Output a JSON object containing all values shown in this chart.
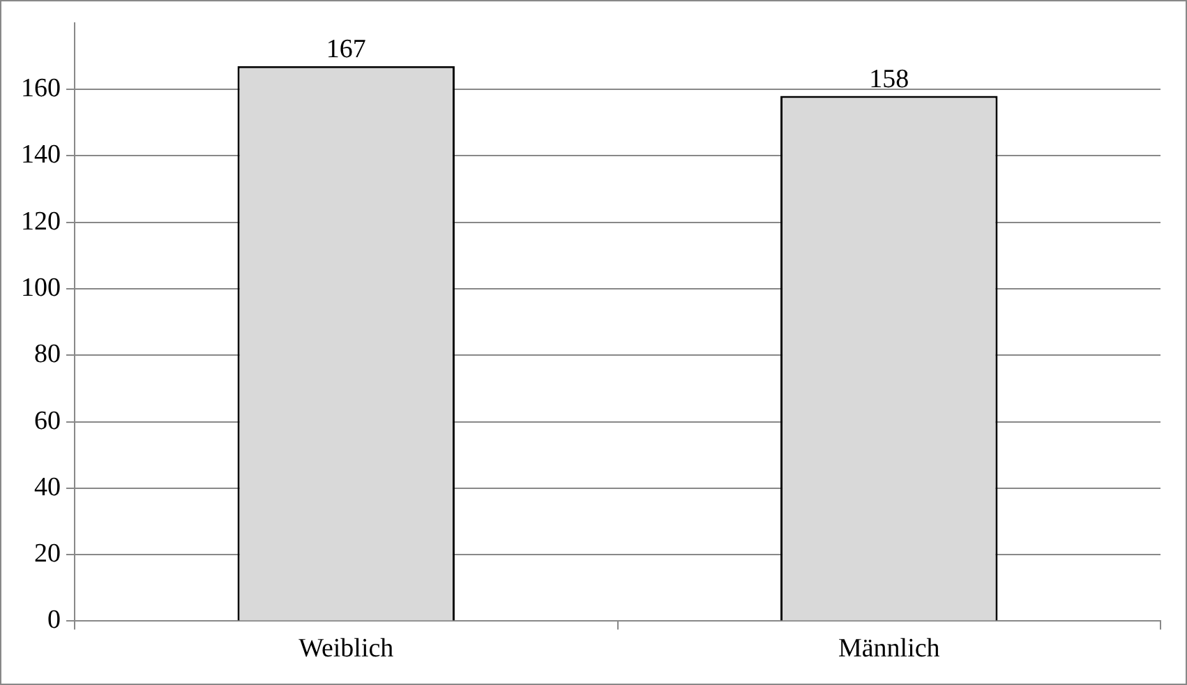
{
  "chart_data": {
    "type": "bar",
    "categories": [
      "Weiblich",
      "Männlich"
    ],
    "values": [
      167,
      158
    ],
    "color": "#d9d9d9",
    "ylim": [
      0,
      180
    ],
    "yticks": [
      0,
      20,
      40,
      60,
      80,
      100,
      120,
      140,
      160
    ],
    "grid": "y",
    "data_labels": true,
    "legend": false
  }
}
